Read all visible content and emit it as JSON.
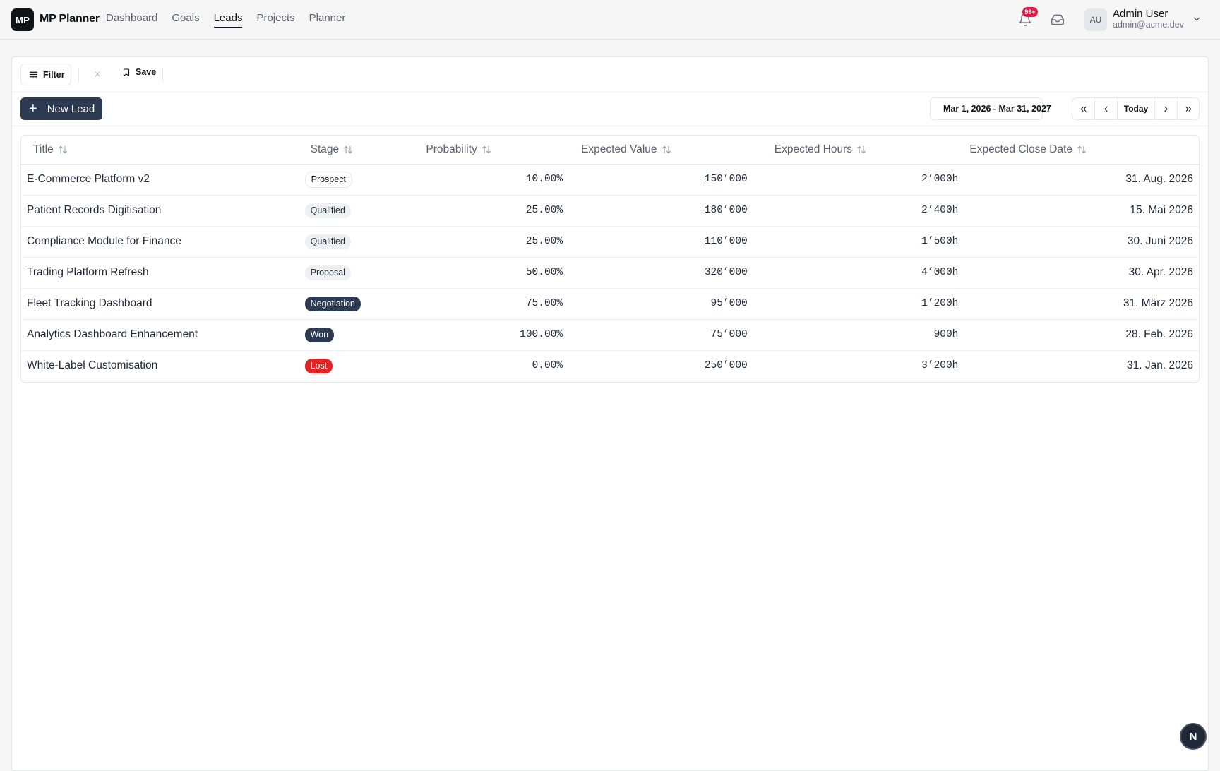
{
  "app": {
    "logo": "MP",
    "brand": "MP Planner"
  },
  "nav": [
    {
      "label": "Dashboard",
      "active": false
    },
    {
      "label": "Goals",
      "active": false
    },
    {
      "label": "Leads",
      "active": true
    },
    {
      "label": "Projects",
      "active": false
    },
    {
      "label": "Planner",
      "active": false
    }
  ],
  "header": {
    "notifications_badge": "99+",
    "user": {
      "initials": "AU",
      "name": "Admin User",
      "email": "admin@acme.dev"
    }
  },
  "toolbar": {
    "filter_label": "Filter",
    "clear_icon": "close-icon",
    "save_label": "Save",
    "new_lead_label": "New Lead",
    "date_range": "Mar 1, 2026 - Mar 31, 2027",
    "today_label": "Today"
  },
  "table": {
    "columns": [
      "Title",
      "Stage",
      "Probability",
      "Expected Value",
      "Expected Hours",
      "Expected Close Date"
    ],
    "rows": [
      {
        "title": "E-Commerce Platform v2",
        "stage": "Prospect",
        "stage_style": "outline",
        "probability": "10.00%",
        "value": "150’000",
        "hours": "2’000h",
        "close": "31. Aug. 2026"
      },
      {
        "title": "Patient Records Digitisation",
        "stage": "Qualified",
        "stage_style": "gray",
        "probability": "25.00%",
        "value": "180’000",
        "hours": "2’400h",
        "close": "15. Mai 2026"
      },
      {
        "title": "Compliance Module for Finance",
        "stage": "Qualified",
        "stage_style": "gray",
        "probability": "25.00%",
        "value": "110’000",
        "hours": "1’500h",
        "close": "30. Juni 2026"
      },
      {
        "title": "Trading Platform Refresh",
        "stage": "Proposal",
        "stage_style": "gray",
        "probability": "50.00%",
        "value": "320’000",
        "hours": "4’000h",
        "close": "30. Apr. 2026"
      },
      {
        "title": "Fleet Tracking Dashboard",
        "stage": "Negotiation",
        "stage_style": "dark",
        "probability": "75.00%",
        "value": "95’000",
        "hours": "1’200h",
        "close": "31. März 2026"
      },
      {
        "title": "Analytics Dashboard Enhancement",
        "stage": "Won",
        "stage_style": "dark",
        "probability": "100.00%",
        "value": "75’000",
        "hours": "900h",
        "close": "28. Feb. 2026"
      },
      {
        "title": "White-Label Customisation",
        "stage": "Lost",
        "stage_style": "red",
        "probability": "0.00%",
        "value": "250’000",
        "hours": "3’200h",
        "close": "31. Jan. 2026"
      }
    ]
  },
  "help_button": {
    "label": "N"
  },
  "colors": {
    "primary": "#2c3a52",
    "danger": "#dc2626",
    "badge_red": "#e11d48"
  }
}
